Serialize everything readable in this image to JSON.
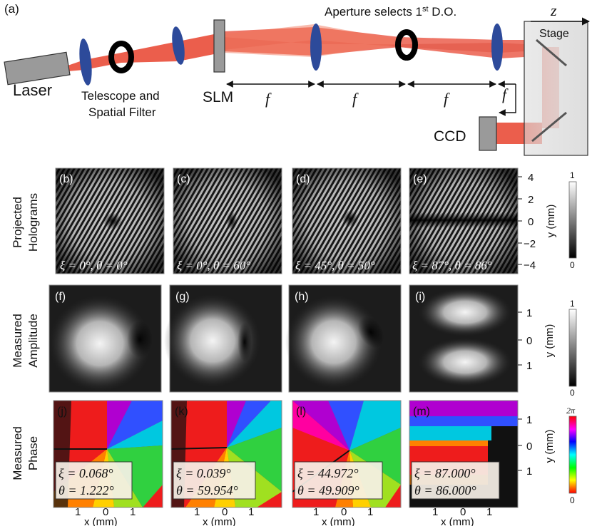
{
  "panel_a": {
    "tag": "(a)",
    "laser": "Laser",
    "telescope_line1": "Telescope and",
    "telescope_line2": "Spatial Filter",
    "slm": "SLM",
    "aperture_text": "Aperture selects 1",
    "aperture_sup": "st",
    "aperture_tail": " D.O.",
    "z": "z",
    "stage": "Stage",
    "f": "f",
    "ccd": "CCD"
  },
  "rows": {
    "holograms_line1": "Projected",
    "holograms_line2": "Holograms",
    "amplitude_line1": "Measured",
    "amplitude_line2": "Amplitude",
    "phase_line1": "Measured",
    "phase_line2": "Phase"
  },
  "holograms": [
    {
      "tag": "(b)",
      "caption": "ξ = 0°, θ = 0°"
    },
    {
      "tag": "(c)",
      "caption": "ξ = 0°, θ = 60°"
    },
    {
      "tag": "(d)",
      "caption": "ξ = 45°, θ = 50°"
    },
    {
      "tag": "(e)",
      "caption": "ξ = 87°, θ = 86°"
    }
  ],
  "amplitudes": [
    {
      "tag": "(f)"
    },
    {
      "tag": "(g)"
    },
    {
      "tag": "(h)"
    },
    {
      "tag": "(i)"
    }
  ],
  "phases": [
    {
      "tag": "(j)",
      "xi": "ξ = 0.068°",
      "theta": "θ = 1.222°"
    },
    {
      "tag": "(k)",
      "xi": "ξ = 0.039°",
      "theta": "θ = 59.954°"
    },
    {
      "tag": "(l)",
      "xi": "ξ = 44.972°",
      "theta": "θ = 49.909°"
    },
    {
      "tag": "(m)",
      "xi": "ξ = 87.000°",
      "theta": "θ = 86.000°"
    }
  ],
  "axes": {
    "y_label": "y (mm)",
    "x_label": "x (mm)",
    "hologram_ticks": [
      "4",
      "2",
      "0",
      "−2",
      "−4"
    ],
    "measured_ticks": [
      "1",
      "0",
      "1"
    ],
    "x_ticks": [
      "1",
      "0",
      "1"
    ]
  },
  "colorbars": {
    "gray_top": "1",
    "gray_bottom": "0",
    "phase_top": "2π",
    "phase_bottom": "0"
  },
  "colors": {
    "beam": "#e8412c",
    "lens": "#2d4a9a",
    "stage": "#dcdcdc"
  }
}
